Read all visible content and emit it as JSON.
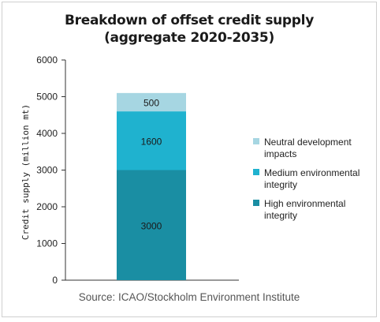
{
  "chart_data": {
    "type": "bar",
    "stacked": true,
    "title_lines": [
      "Breakdown of offset credit supply",
      "(aggregate 2020-2035)"
    ],
    "ylabel": "Credit supply (million mt)",
    "xlabel": "",
    "ylim": [
      0,
      6000
    ],
    "y_ticks": [
      "0",
      "1000",
      "2000",
      "3000",
      "4000",
      "5000",
      "6000"
    ],
    "categories": [
      ""
    ],
    "series": [
      {
        "name": "High environmental integrity",
        "values": [
          3000
        ],
        "label": "3000",
        "color": "#1a8ea3"
      },
      {
        "name": "Medium environmental integrity",
        "values": [
          1600
        ],
        "label": "1600",
        "color": "#1fb2cf"
      },
      {
        "name": "Neutral development impacts",
        "values": [
          500
        ],
        "label": "500",
        "color": "#a6d6e2"
      }
    ],
    "legend_order": [
      {
        "lines": [
          "Neutral development",
          "impacts"
        ],
        "color": "#a6d6e2"
      },
      {
        "lines": [
          "Medium environmental",
          "integrity"
        ],
        "color": "#1fb2cf"
      },
      {
        "lines": [
          "High environmental",
          "integrity"
        ],
        "color": "#1a8ea3"
      }
    ],
    "legend_position": "right",
    "grid": false,
    "source": "Source: ICAO/Stockholm Environment Institute"
  }
}
